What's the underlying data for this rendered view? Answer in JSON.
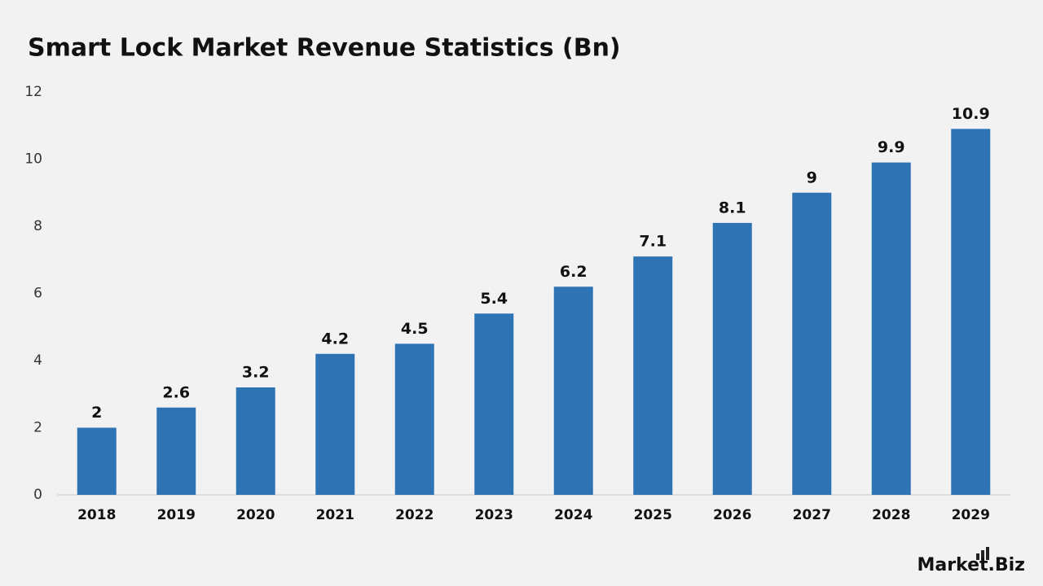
{
  "chart_data": {
    "type": "bar",
    "title": "Smart Lock Market Revenue Statistics (Bn)",
    "categories": [
      "2018",
      "2019",
      "2020",
      "2021",
      "2022",
      "2023",
      "2024",
      "2025",
      "2026",
      "2027",
      "2028",
      "2029"
    ],
    "values": [
      2,
      2.6,
      3.2,
      4.2,
      4.5,
      5.4,
      6.2,
      7.1,
      8.1,
      9,
      9.9,
      10.9
    ],
    "color": "#2e74b5",
    "ylim": [
      0,
      12
    ],
    "yticks": [
      0,
      2,
      4,
      6,
      8,
      10,
      12
    ],
    "grid": false,
    "logo": "Market.Biz"
  }
}
